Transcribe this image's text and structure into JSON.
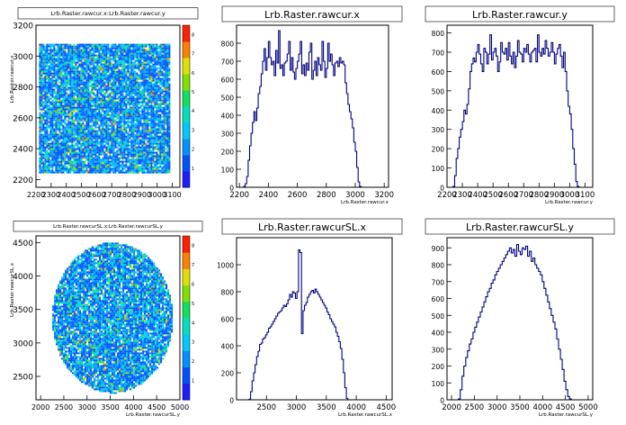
{
  "chart_data": [
    {
      "type": "heatmap",
      "title": "Lrb.Raster.rawcur.x:Lrb.Raster.rawcur.y",
      "xlabel": "",
      "ylabel": "Lrb.Raster.rawcur.x",
      "x_ticks": [
        "2200",
        "2300",
        "2400",
        "2500",
        "2600",
        "2700",
        "2800",
        "2900",
        "3000",
        "3100"
      ],
      "y_ticks": [
        "2200",
        "2400",
        "2600",
        "2800",
        "3000",
        "3200"
      ],
      "xlim": [
        2200,
        3150
      ],
      "ylim": [
        2150,
        3200
      ],
      "colorbar_ticks": [
        "1",
        "2",
        "3",
        "4",
        "5",
        "6",
        "7",
        "8"
      ],
      "region": {
        "shape": "square",
        "x": [
          2220,
          3080
        ],
        "y": [
          2250,
          3080
        ]
      }
    },
    {
      "type": "histogram",
      "title": "Lrb.Raster.rawcur.x",
      "xlabel": "Lrb.Raster.rawcur.x",
      "x_ticks": [
        "2200",
        "2400",
        "2600",
        "2800",
        "3000",
        "3200"
      ],
      "y_ticks": [
        "0",
        "100",
        "200",
        "300",
        "400",
        "500",
        "600",
        "700",
        "800"
      ],
      "xlim": [
        2180,
        3230
      ],
      "ylim": [
        0,
        900
      ],
      "bin_start": 2230,
      "bin_width": 10,
      "values": [
        5,
        20,
        60,
        150,
        230,
        300,
        360,
        420,
        370,
        440,
        520,
        560,
        630,
        700,
        770,
        650,
        720,
        810,
        720,
        680,
        700,
        620,
        760,
        690,
        870,
        660,
        680,
        620,
        690,
        700,
        740,
        810,
        650,
        720,
        640,
        600,
        660,
        700,
        740,
        810,
        630,
        680,
        620,
        690,
        650,
        750,
        800,
        600,
        650,
        700,
        620,
        720,
        680,
        650,
        810,
        700,
        610,
        660,
        800,
        700,
        740,
        680,
        620,
        690,
        700,
        670,
        720,
        690,
        700,
        680,
        580,
        520,
        460,
        420,
        380,
        330,
        250,
        200,
        110,
        30,
        5
      ]
    },
    {
      "type": "histogram",
      "title": "Lrb.Raster.rawcur.y",
      "xlabel": "Lrb.Raster.rawcur.y",
      "x_ticks": [
        "2200",
        "2300",
        "2400",
        "2500",
        "2600",
        "2700",
        "2800",
        "2900",
        "3000",
        "3100"
      ],
      "y_ticks": [
        "0",
        "100",
        "200",
        "300",
        "400",
        "500",
        "600",
        "700",
        "800"
      ],
      "xlim": [
        2200,
        3150
      ],
      "ylim": [
        0,
        840
      ],
      "bin_start": 2240,
      "bin_width": 10,
      "values": [
        5,
        60,
        150,
        200,
        260,
        300,
        340,
        400,
        380,
        430,
        510,
        600,
        640,
        670,
        650,
        700,
        740,
        690,
        640,
        600,
        720,
        700,
        640,
        690,
        790,
        660,
        700,
        720,
        680,
        600,
        650,
        750,
        700,
        690,
        720,
        660,
        750,
        680,
        640,
        700,
        620,
        680,
        760,
        700,
        690,
        650,
        720,
        700,
        740,
        690,
        650,
        700,
        710,
        720,
        650,
        790,
        700,
        680,
        720,
        690,
        760,
        720,
        680,
        700,
        750,
        700,
        640,
        690,
        720,
        740,
        680,
        620,
        700,
        600,
        500,
        420,
        380,
        300,
        200,
        120,
        30,
        5
      ]
    },
    {
      "type": "heatmap",
      "title": "Lrb.Raster.rawcurSL.x:Lrb.Raster.rawcurSL.y",
      "xlabel": "Lrb.Raster.rawcurSL.y",
      "ylabel": "Lrb.Raster.rawcurSL.x",
      "x_ticks": [
        "2000",
        "2500",
        "3000",
        "3500",
        "4000",
        "4500",
        "5000"
      ],
      "y_ticks": [
        "2500",
        "3000",
        "3500",
        "4000",
        "4500"
      ],
      "xlim": [
        1900,
        5000
      ],
      "ylim": [
        2150,
        4600
      ],
      "colorbar_ticks": [
        "1",
        "2",
        "3",
        "4",
        "5",
        "6",
        "7",
        "8"
      ],
      "region": {
        "shape": "ellipse",
        "x": [
          2250,
          4850
        ],
        "y": [
          2250,
          4500
        ]
      }
    },
    {
      "type": "histogram",
      "title": "Lrb.Raster.rawcurSL.x",
      "xlabel": "Lrb.Raster.rawcurSL.x",
      "x_ticks": [
        "2500",
        "3000",
        "3500",
        "4000",
        "4500"
      ],
      "y_ticks": [
        "0",
        "200",
        "400",
        "600",
        "800",
        "1000"
      ],
      "xlim": [
        2000,
        4600
      ],
      "ylim": [
        0,
        1200
      ],
      "bin_start": 2210,
      "bin_width": 25,
      "values": [
        5,
        60,
        140,
        200,
        260,
        320,
        360,
        410,
        420,
        450,
        460,
        480,
        500,
        530,
        540,
        560,
        580,
        600,
        620,
        640,
        650,
        660,
        680,
        700,
        690,
        710,
        740,
        780,
        760,
        800,
        790,
        750,
        800,
        1110,
        1090,
        490,
        660,
        700,
        720,
        760,
        780,
        800,
        810,
        790,
        820,
        800,
        780,
        760,
        740,
        720,
        700,
        680,
        650,
        630,
        600,
        580,
        560,
        540,
        500,
        470,
        430,
        380,
        300,
        200,
        90,
        10
      ]
    },
    {
      "type": "histogram",
      "title": "Lrb.Raster.rawcurSL.y",
      "xlabel": "Lrb.Raster.rawcurSL.y",
      "x_ticks": [
        "2000",
        "2500",
        "3000",
        "3500",
        "4000",
        "4500",
        "5000"
      ],
      "y_ticks": [
        "0",
        "100",
        "200",
        "300",
        "400",
        "500",
        "600",
        "700",
        "800",
        "900"
      ],
      "xlim": [
        1900,
        5100
      ],
      "ylim": [
        0,
        960
      ],
      "bin_start": 2150,
      "bin_width": 40,
      "values": [
        5,
        60,
        140,
        200,
        250,
        290,
        330,
        360,
        400,
        430,
        460,
        490,
        520,
        550,
        580,
        610,
        640,
        660,
        690,
        710,
        740,
        760,
        780,
        800,
        820,
        840,
        860,
        880,
        900,
        870,
        890,
        850,
        920,
        880,
        860,
        900,
        890,
        910,
        850,
        880,
        820,
        840,
        800,
        780,
        760,
        740,
        700,
        660,
        620,
        580,
        540,
        500,
        460,
        420,
        360,
        300,
        240,
        180,
        110,
        60,
        20,
        5
      ]
    }
  ],
  "colors": {
    "background": "#ffffff",
    "histogram_line": "#000080",
    "axis": "#000000"
  }
}
